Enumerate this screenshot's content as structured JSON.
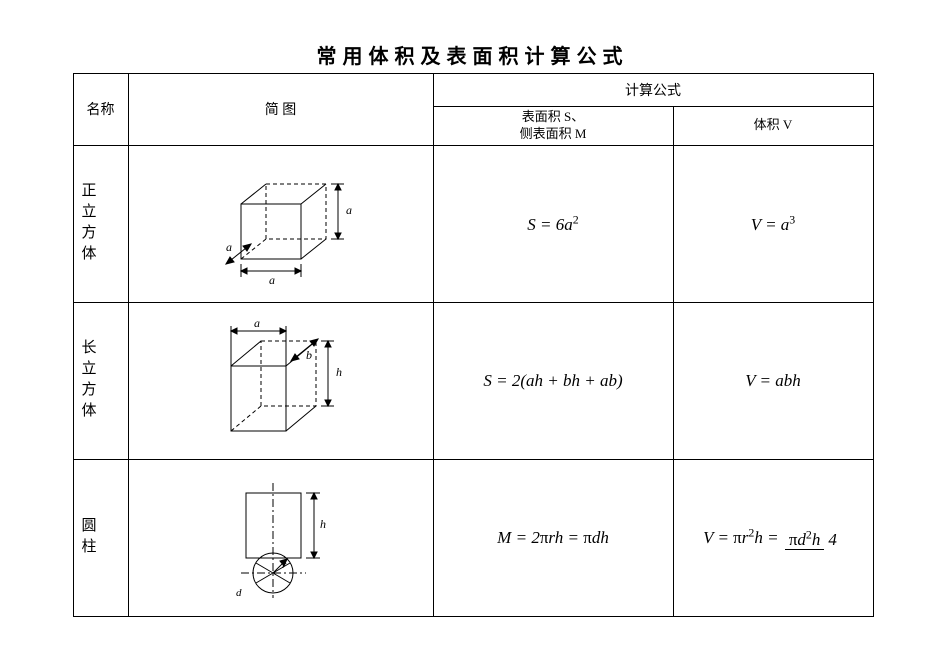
{
  "title": "常用体积及表面积计算公式",
  "header": {
    "name": "名称",
    "figure": "简        图",
    "formula_group": "计算公式",
    "surface": "表面积 S、",
    "surface2": "侧表面积 M",
    "volume": "体积 V"
  },
  "rows": {
    "cube": {
      "label": "正立方体",
      "S_html": "<span class='formula'>S</span> = 6<span class='formula'>a</span><span class='sup'>2</span>",
      "V_html": "<span class='formula'>V</span> = <span class='formula'>a</span><span class='sup'>3</span>"
    },
    "cuboid": {
      "label": "长立方体",
      "S_html": "<span class='formula'>S</span> = 2(<span class='formula'>ah</span> + <span class='formula'>bh</span> + <span class='formula'>ab</span>)",
      "V_html": "<span class='formula'>V</span> = <span class='formula'>abh</span>"
    },
    "cylinder": {
      "label": "圆柱",
      "S_html": "<span class='formula'>M</span> = 2<span class='pi'>π</span><span class='formula'>rh</span> = <span class='pi'>π</span><span class='formula'>dh</span>",
      "V_html": "<span class='formula'>V</span> = <span class='pi'>π</span><span class='formula'>r</span><span class='sup'>2</span><span class='formula'>h</span> = <span class='frac'><span class='num'><span class='pi'>π</span><span class='formula'>d</span><span class='sup'>2</span><span class='formula'>h</span></span><span class='den'>4</span></span>"
    }
  },
  "style": {
    "border_color": "#000000",
    "background": "#ffffff",
    "text_color": "#000000",
    "title_fontsize": 20,
    "body_fontsize": 14,
    "formula_fontsize": 17
  }
}
